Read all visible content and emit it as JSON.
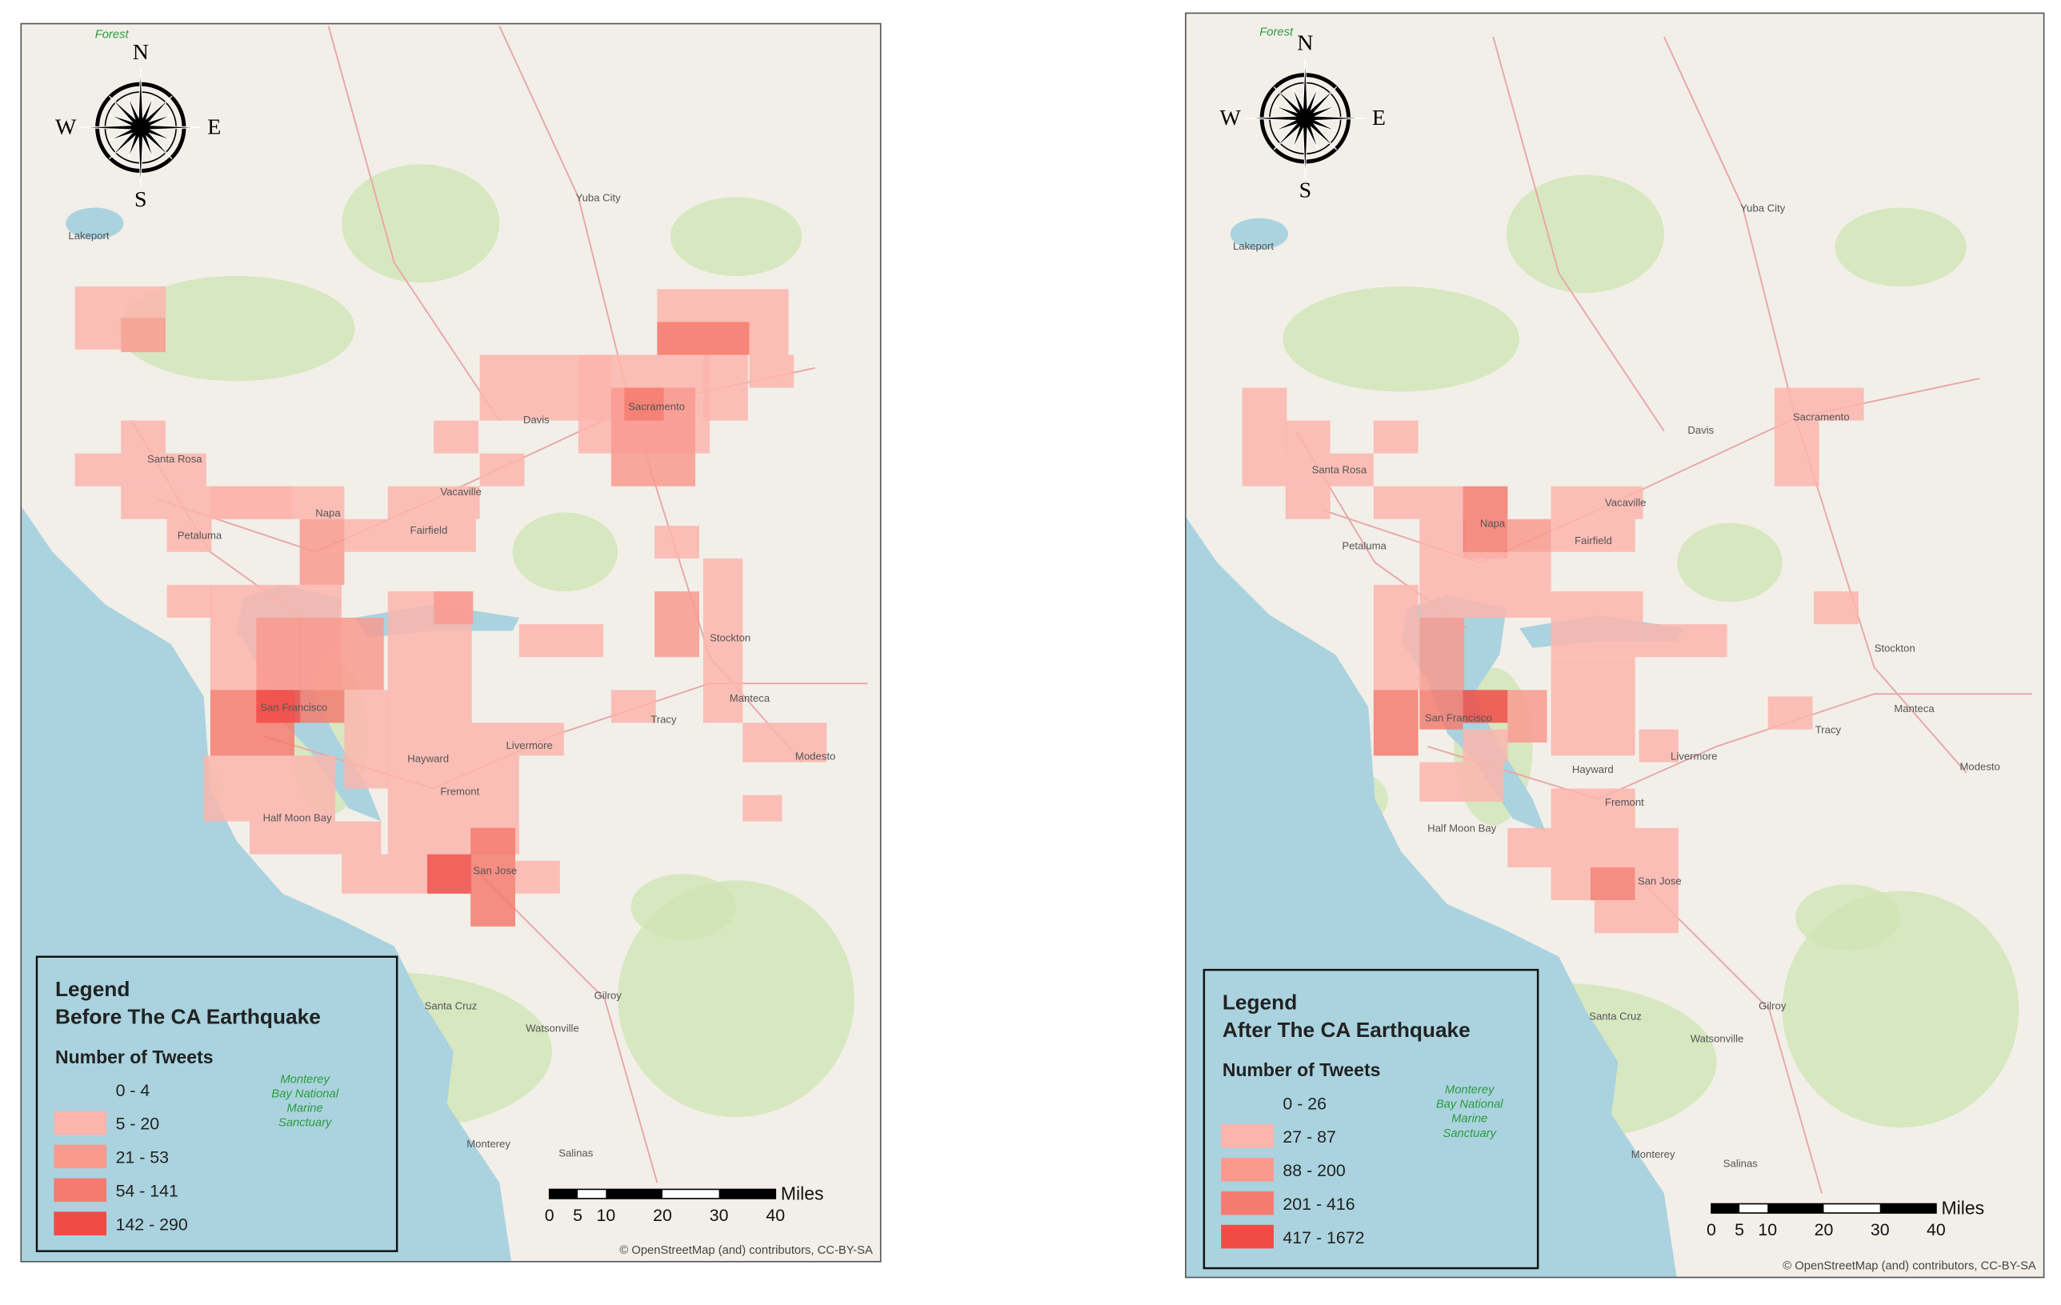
{
  "maps": [
    {
      "forest_label": "Forest",
      "compass": {
        "n": "N",
        "s": "S",
        "w": "W",
        "e": "E"
      },
      "legend": {
        "heading": "Legend",
        "title": "Before The CA Earthquake",
        "subtitle": "Number of Tweets",
        "classes": [
          {
            "label": "0 - 4"
          },
          {
            "label": "5 - 20",
            "color": "#fbb5ad"
          },
          {
            "label": "21 - 53",
            "color": "#f99a8f"
          },
          {
            "label": "54 - 141",
            "color": "#f57b70"
          },
          {
            "label": "142 - 290",
            "color": "#f14b45"
          }
        ]
      },
      "scale_bar": {
        "ticks": [
          0,
          5,
          10,
          20,
          30,
          40
        ],
        "unit": "Miles"
      },
      "attribution": "© OpenStreetMap (and) contributors, CC-BY-SA",
      "places": [
        "Yuba City",
        "Lakeport",
        "Santa Rosa",
        "Petaluma",
        "Napa",
        "Fairfield",
        "Vacaville",
        "Davis",
        "Sacramento",
        "Stockton",
        "Tracy",
        "Manteca",
        "Modesto",
        "San Francisco",
        "Hayward",
        "Fremont",
        "San Jose",
        "Livermore",
        "Half Moon Bay",
        "Gilroy",
        "Santa Cruz",
        "Watsonville",
        "Salinas",
        "Monterey"
      ],
      "sanctuary": [
        "Monterey",
        "Bay National",
        "Marine",
        "Sanctuary"
      ]
    },
    {
      "forest_label": "Forest",
      "compass": {
        "n": "N",
        "s": "S",
        "w": "W",
        "e": "E"
      },
      "legend": {
        "heading": "Legend",
        "title": "After The CA Earthquake",
        "subtitle": "Number of Tweets",
        "classes": [
          {
            "label": "0 - 26"
          },
          {
            "label": "27 - 87",
            "color": "#fbb5ad"
          },
          {
            "label": "88 - 200",
            "color": "#f99a8f"
          },
          {
            "label": "201 - 416",
            "color": "#f57b70"
          },
          {
            "label": "417 - 1672",
            "color": "#f14b45"
          }
        ]
      },
      "scale_bar": {
        "ticks": [
          0,
          5,
          10,
          20,
          30,
          40
        ],
        "unit": "Miles"
      },
      "attribution": "© OpenStreetMap (and) contributors, CC-BY-SA",
      "places": [
        "Yuba City",
        "Lakeport",
        "Santa Rosa",
        "Petaluma",
        "Napa",
        "Fairfield",
        "Vacaville",
        "Davis",
        "Sacramento",
        "Stockton",
        "Tracy",
        "Manteca",
        "Modesto",
        "San Francisco",
        "Hayward",
        "Fremont",
        "San Jose",
        "Livermore",
        "Half Moon Bay",
        "Gilroy",
        "Santa Cruz",
        "Watsonville",
        "Salinas",
        "Monterey"
      ],
      "sanctuary": [
        "Monterey",
        "Bay National",
        "Marine",
        "Sanctuary"
      ]
    }
  ]
}
